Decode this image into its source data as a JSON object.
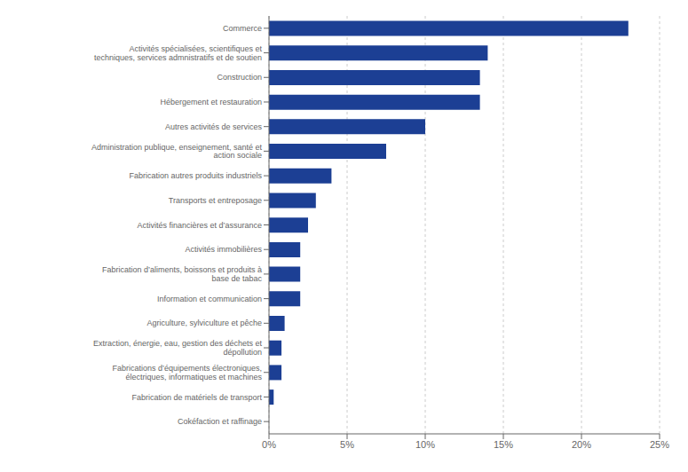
{
  "chart_data": {
    "type": "bar",
    "orientation": "horizontal",
    "categories": [
      "Cokéfaction et raffinage",
      "Fabrication de matériels de transport",
      "Fabrications d’équipements électroniques, électriques, informatiques et machines",
      "Extraction, énergie, eau, gestion des déchets et dépollution",
      "Agriculture, sylviculture et pêche",
      "Information et communication",
      "Fabrication d’aliments, boissons et produits à base de tabac",
      "Activités immobilières",
      "Activités financières et d’assurance",
      "Transports et entreposage",
      "Fabrication autres produits industriels",
      "Administration publique, enseignement, santé et action sociale",
      "Autres activités de services",
      "Hébergement et restauration",
      "Construction",
      "Activités spécialisées, scientifiques et techniques, services admnistratifs et de soutien",
      "Commerce"
    ],
    "values": [
      0.0,
      0.3,
      0.8,
      0.8,
      1.0,
      2.0,
      2.0,
      2.0,
      2.5,
      3.0,
      4.0,
      7.5,
      10.0,
      13.5,
      13.5,
      14.0,
      23.0
    ],
    "color": "#1c3f94",
    "xlim": [
      0,
      25
    ],
    "xticks": [
      {
        "value": 0,
        "label": "0%"
      },
      {
        "value": 5,
        "label": "5%"
      },
      {
        "value": 10,
        "label": "10%"
      },
      {
        "value": 15,
        "label": "15%"
      },
      {
        "value": 20,
        "label": "20%"
      },
      {
        "value": 25,
        "label": "25%"
      }
    ],
    "grid": true
  }
}
